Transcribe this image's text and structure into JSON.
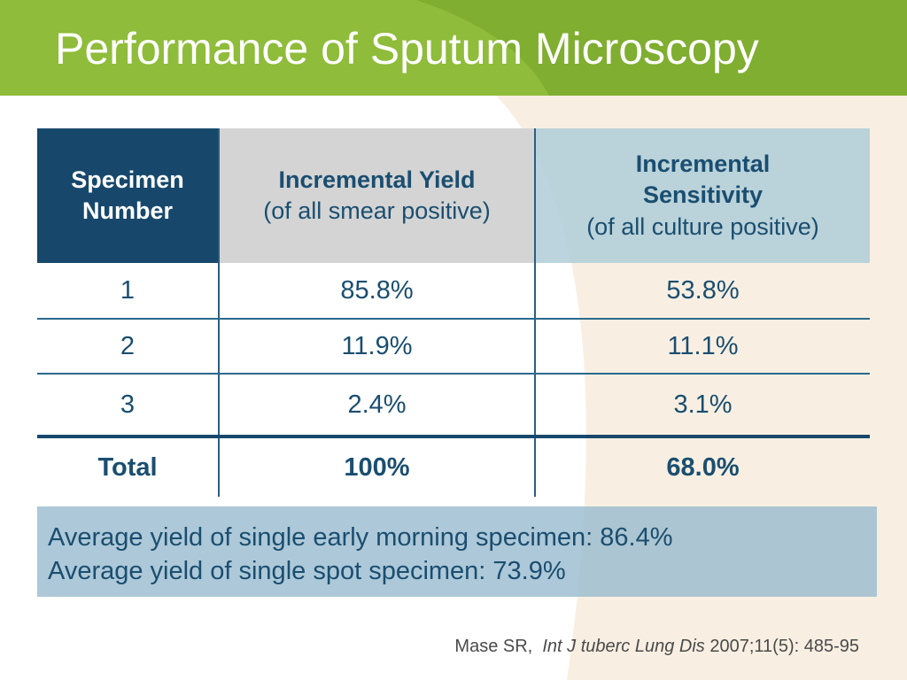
{
  "title": "Performance of Sputum Microscopy",
  "table": {
    "headers": [
      {
        "main": "Specimen Number",
        "sub": ""
      },
      {
        "main": "Incremental Yield",
        "sub": "(of all smear positive)"
      },
      {
        "main": "Incremental Sensitivity",
        "sub": "(of all culture positive)"
      }
    ],
    "rows": [
      [
        "1",
        "85.8%",
        "53.8%"
      ],
      [
        "2",
        "11.9%",
        "11.1%"
      ],
      [
        "3",
        "2.4%",
        "3.1%"
      ]
    ],
    "total": [
      "Total",
      "100%",
      "68.0%"
    ]
  },
  "notes": [
    "Average yield of single early morning specimen: 86.4%",
    "Average yield of single spot specimen: 73.9%"
  ],
  "citation": {
    "author": "Mase SR,",
    "journal": "Int J tuberc Lung Dis",
    "details": "2007;11(5): 485-95"
  },
  "colors": {
    "title_green": "#8fbc3a",
    "header_navy": "#17486c",
    "text_blue": "#1a4e70",
    "cream": "#f8efe2"
  }
}
